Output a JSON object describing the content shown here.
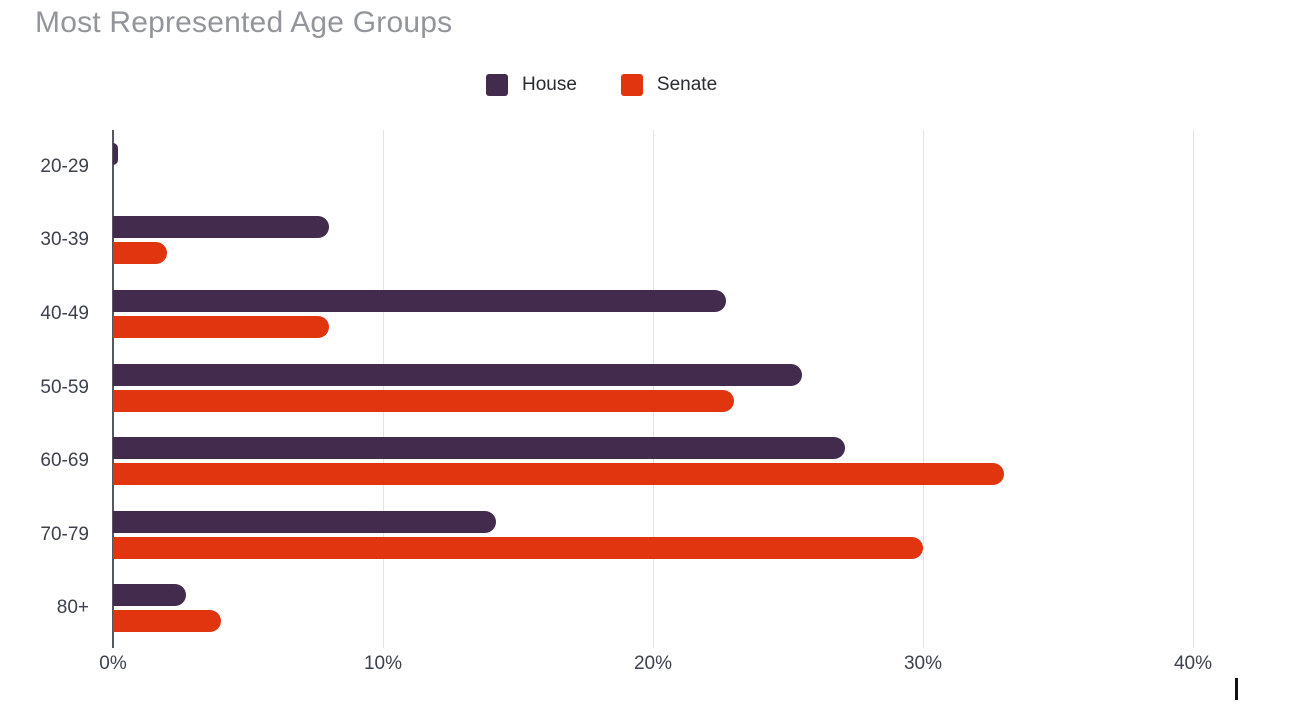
{
  "title": "Most Represented Age Groups",
  "legend": [
    {
      "label": "House",
      "color": "#432b4e"
    },
    {
      "label": "Senate",
      "color": "#e1350f"
    }
  ],
  "colors": {
    "house": "#432b4e",
    "senate": "#e1350f",
    "title_text": "#93959b",
    "axis_text": "#3c414d",
    "gridline": "#e1e3e6",
    "axis_line": "#55585e"
  },
  "chart_data": {
    "type": "bar",
    "orientation": "horizontal",
    "title": "Most Represented Age Groups",
    "xlabel": "",
    "ylabel": "",
    "categories": [
      "20-29",
      "30-39",
      "40-49",
      "50-59",
      "60-69",
      "70-79",
      "80+"
    ],
    "series": [
      {
        "name": "House",
        "color": "#432b4e",
        "values": [
          0.2,
          8,
          22.7,
          25.5,
          27.1,
          14.2,
          2.7
        ]
      },
      {
        "name": "Senate",
        "color": "#e1350f",
        "values": [
          0,
          2,
          8,
          23,
          33,
          30,
          4
        ]
      }
    ],
    "x_tick_labels": [
      "0%",
      "10%",
      "20%",
      "30%",
      "40%"
    ],
    "x_tick_values": [
      0,
      10,
      20,
      30,
      40
    ],
    "xlim": [
      0,
      43
    ],
    "grid": "vertical",
    "legend_position": "top"
  }
}
